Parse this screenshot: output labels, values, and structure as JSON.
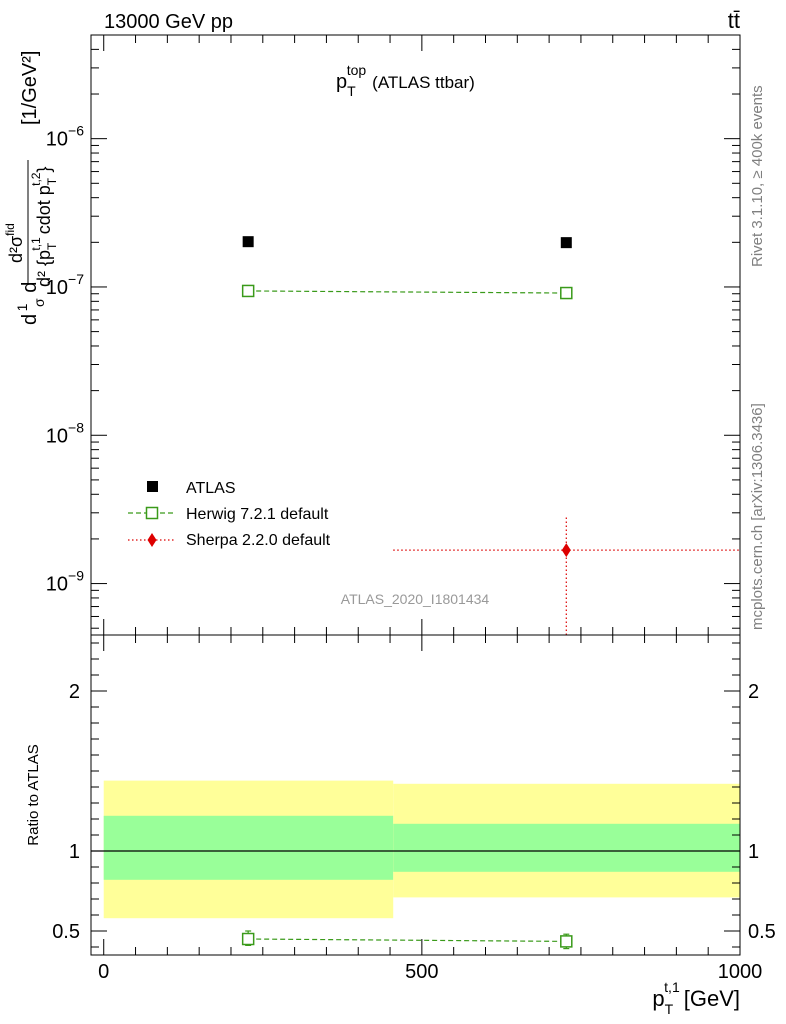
{
  "header": {
    "left_label": "13000 GeV pp",
    "right_label": "tt̄"
  },
  "side_labels": {
    "rivet": "Rivet 3.1.10, ≥ 400k events",
    "mcplots": "mcplots.cern.ch [arXiv:1306.3436]"
  },
  "watermark": "ATLAS_2020_I1801434",
  "chart_data": [
    {
      "panel": "main",
      "type": "scatter",
      "title": "p_T^top (ATLAS ttbar)",
      "title_parts": {
        "base": "p",
        "sub": "T",
        "sup": "top",
        "rest": "(ATLAS ttbar)"
      },
      "ylabel": "d²σ / d²{p_T^t,1 cdot p_T^t,2} [1/GeV²]",
      "ylabel_parts": {
        "prefix": "d",
        "frac_num": "1",
        "frac_den": "σ",
        "d2": "d",
        "num": "d²σ",
        "num_sup": "fid",
        "den": "d² {p",
        "den_tail": "cdot p",
        "sub_t": "T",
        "sup_t1": "t,1",
        "sup_t2": "t,2",
        "close": "}",
        "units": "[1/GeV²]"
      },
      "yscale": "log",
      "ylim": [
        4.5e-10,
        5e-06
      ],
      "xlim": [
        -20,
        1000
      ],
      "y_ticks": [
        {
          "value": 1e-09,
          "base": "10",
          "exp": "−9"
        },
        {
          "value": 1e-08,
          "base": "10",
          "exp": "−8"
        },
        {
          "value": 1e-07,
          "base": "10",
          "exp": "−7"
        },
        {
          "value": 1e-06,
          "base": "10",
          "exp": "−6"
        }
      ],
      "series": [
        {
          "name": "ATLAS",
          "color": "#000000",
          "marker": "filled-square",
          "points": [
            {
              "x": 227,
              "y": 2.02e-07
            },
            {
              "x": 727,
              "y": 1.99e-07
            }
          ]
        },
        {
          "name": "Herwig 7.2.1 default",
          "color": "#3a9a1a",
          "marker": "open-square",
          "line": "dashed",
          "points": [
            {
              "x": 227,
              "y": 9.4e-08
            },
            {
              "x": 727,
              "y": 9.1e-08
            }
          ]
        },
        {
          "name": "Sherpa 2.2.0 default",
          "color": "#dd0000",
          "marker": "filled-diamond",
          "line": "dotted",
          "points": [
            {
              "x": 727,
              "y": 1.68e-09,
              "xerr": [
                455,
                1000
              ],
              "yerr": [
                4.5e-10,
                2.85e-09
              ]
            }
          ]
        }
      ]
    },
    {
      "panel": "ratio",
      "type": "scatter",
      "ylabel": "Ratio to ATLAS",
      "xlabel": "p_T^t,1 [GeV]",
      "xlabel_parts": {
        "base": "p",
        "sub": "T",
        "sup": "t,1",
        "units": "[GeV]"
      },
      "xlim": [
        -20,
        1000
      ],
      "ylim": [
        0.35,
        2.35
      ],
      "x_ticks": [
        {
          "value": 0,
          "label": "0"
        },
        {
          "value": 500,
          "label": "500"
        },
        {
          "value": 1000,
          "label": "1000"
        }
      ],
      "y_ticks": [
        {
          "value": 0.5,
          "label": "0.5"
        },
        {
          "value": 1,
          "label": "1"
        },
        {
          "value": 2,
          "label": "2"
        }
      ],
      "bands": [
        {
          "x0": 0,
          "x1": 455,
          "stat_low": 0.82,
          "stat_high": 1.22,
          "tot_low": 0.58,
          "tot_high": 1.44
        },
        {
          "x0": 455,
          "x1": 1000,
          "stat_low": 0.87,
          "stat_high": 1.17,
          "tot_low": 0.71,
          "tot_high": 1.42
        }
      ],
      "band_colors": {
        "total": "#ffff99",
        "stat": "#99ff99"
      },
      "reference_line": 1,
      "series": [
        {
          "name": "Herwig 7.2.1 default",
          "color": "#3a9a1a",
          "marker": "open-square",
          "line": "dashed",
          "points": [
            {
              "x": 227,
              "y": 0.45,
              "yerr": [
                0.41,
                0.5
              ]
            },
            {
              "x": 727,
              "y": 0.435,
              "yerr": [
                0.39,
                0.48
              ]
            }
          ]
        }
      ]
    }
  ]
}
